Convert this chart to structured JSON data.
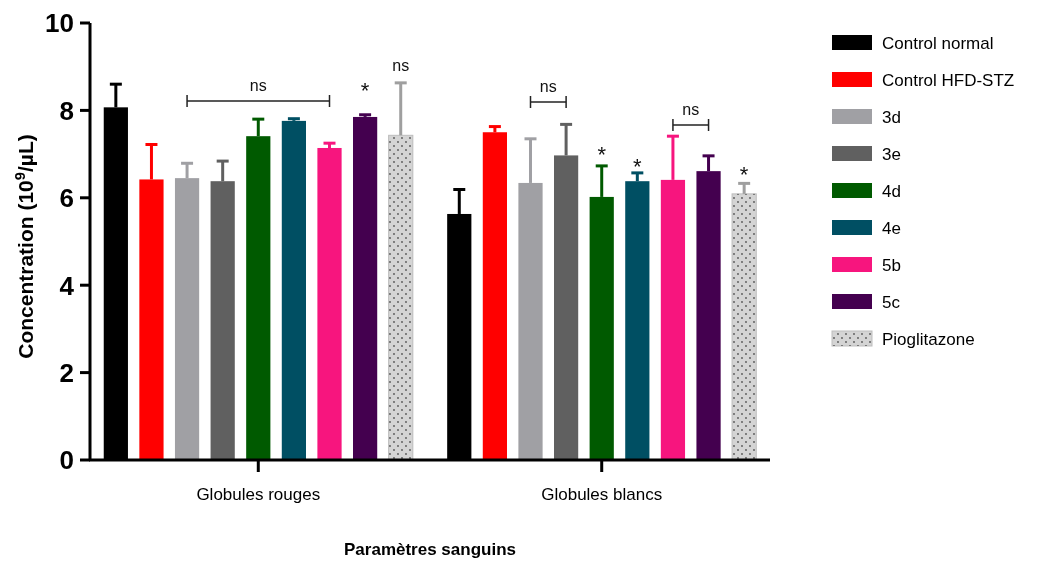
{
  "chart_data": {
    "type": "bar",
    "xlabel": "Paramètres sanguins",
    "ylabel": "Concentration (10$^{9}$/µL)",
    "categories": [
      "Globules rouges",
      "Globules blancs"
    ],
    "series": [
      {
        "name": "Control normal",
        "color": "#000000",
        "values": [
          8.07,
          5.63
        ],
        "errors": [
          [
            8.07,
            8.6
          ],
          [
            5.63,
            6.19
          ]
        ]
      },
      {
        "name": "Control HFD-STZ",
        "color": "#ff0000",
        "values": [
          6.42,
          7.5
        ],
        "errors": [
          [
            6.42,
            7.22
          ],
          [
            7.5,
            7.63
          ]
        ]
      },
      {
        "name": "3d",
        "color": "#a0a0a4",
        "values": [
          6.45,
          6.34
        ],
        "errors": [
          [
            6.45,
            6.79
          ],
          [
            6.34,
            7.35
          ]
        ]
      },
      {
        "name": "3e",
        "color": "#606060",
        "values": [
          6.38,
          6.97
        ],
        "errors": [
          [
            6.38,
            6.84
          ],
          [
            6.97,
            7.68
          ]
        ]
      },
      {
        "name": "4d",
        "color": "#005a00",
        "values": [
          7.41,
          6.02
        ],
        "errors": [
          [
            7.41,
            7.8
          ],
          [
            6.02,
            6.73
          ]
        ]
      },
      {
        "name": "4e",
        "color": "#004f63",
        "values": [
          7.76,
          6.38
        ],
        "errors": [
          [
            7.76,
            7.81
          ],
          [
            6.38,
            6.57
          ]
        ]
      },
      {
        "name": "5b",
        "color": "#f7157e",
        "values": [
          7.14,
          6.41
        ],
        "errors": [
          [
            7.14,
            7.25
          ],
          [
            6.41,
            7.41
          ]
        ]
      },
      {
        "name": "5c",
        "color": "#44004f",
        "values": [
          7.85,
          6.61
        ],
        "errors": [
          [
            7.85,
            7.9
          ],
          [
            6.61,
            6.96
          ]
        ]
      },
      {
        "name": "Pioglitazone",
        "color": "#d4d4d4",
        "values": [
          7.43,
          6.09
        ],
        "errors": [
          [
            7.43,
            8.63
          ],
          [
            6.09,
            6.33
          ]
        ]
      }
    ],
    "ylim": [
      0,
      10
    ],
    "yticks": [
      0,
      2,
      4,
      6,
      8,
      10
    ],
    "grid": false,
    "legend": "right",
    "annotations": [
      "ns",
      "*",
      "ns",
      "ns",
      "*",
      "*",
      "ns",
      "*"
    ]
  }
}
